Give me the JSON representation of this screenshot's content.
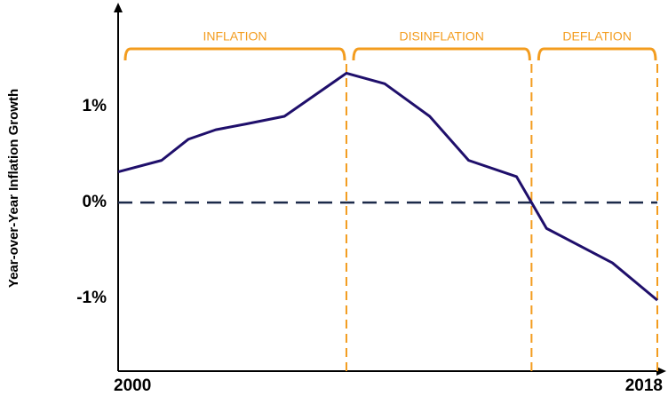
{
  "chart_data": {
    "type": "line",
    "y_label": "Year-over-Year Inflation Growth",
    "x": [
      2000,
      2001.45,
      2002.34,
      2003.26,
      2004.27,
      2005.55,
      2007.62,
      2008.9,
      2010.4,
      2011.7,
      2013.3,
      2013.8,
      2014.3,
      2016.5,
      2018
    ],
    "series": [
      {
        "name": "Inflation",
        "color": "#1f0f6b",
        "values": [
          0.32,
          0.44,
          0.66,
          0.76,
          0.82,
          0.9,
          1.35,
          1.24,
          0.9,
          0.44,
          0.27,
          0,
          -0.27,
          -0.63,
          -1.02
        ]
      }
    ],
    "xlim": [
      2000,
      2018
    ],
    "xticks": [
      2000,
      2018
    ],
    "ylim": [
      -1.76,
      2.04
    ],
    "yticks": [
      {
        "value": 1,
        "label": "1%"
      },
      {
        "value": 0,
        "label": "0%"
      },
      {
        "value": -1,
        "label": "-1%"
      }
    ],
    "reference_line": 0,
    "phases": [
      {
        "label": "INFLATION",
        "start": 2000,
        "end": 2007.62
      },
      {
        "label": "DISINFLATION",
        "start": 2007.62,
        "end": 2013.8
      },
      {
        "label": "DEFLATION",
        "start": 2013.8,
        "end": 2018
      }
    ],
    "phase_color": "#f39c1e"
  }
}
